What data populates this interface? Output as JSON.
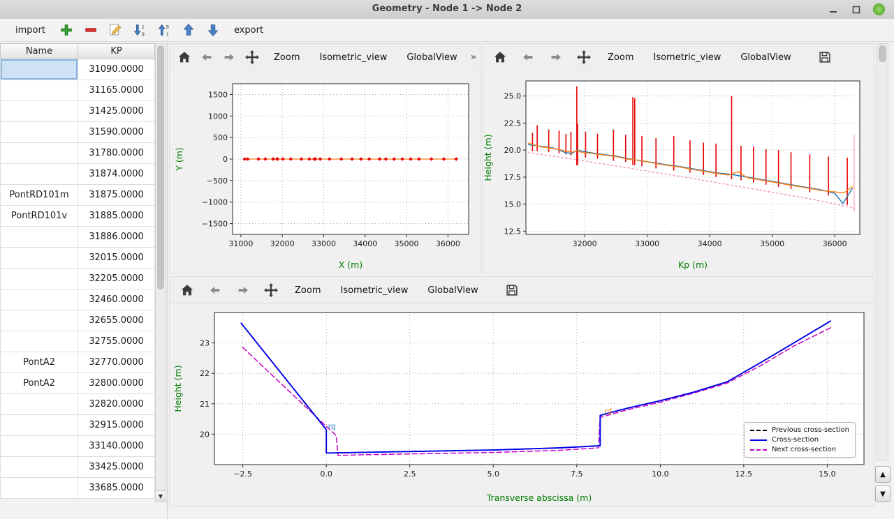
{
  "window": {
    "title": "Geometry - Node 1 -> Node 2"
  },
  "main_toolbar": {
    "import_label": "import",
    "export_label": "export",
    "icons": [
      "add-icon",
      "remove-icon",
      "edit-icon",
      "sort-descending-icon",
      "sort-ascending-icon",
      "move-up-icon",
      "move-down-icon"
    ]
  },
  "table": {
    "columns": [
      "Name",
      "KP"
    ],
    "selected": {
      "row": 0,
      "col": 0
    },
    "rows": [
      [
        "",
        "31090.0000"
      ],
      [
        "",
        "31165.0000"
      ],
      [
        "",
        "31425.0000"
      ],
      [
        "",
        "31590.0000"
      ],
      [
        "",
        "31780.0000"
      ],
      [
        "",
        "31874.0000"
      ],
      [
        "PontRD101m",
        "31875.0000"
      ],
      [
        "PontRD101v",
        "31885.0000"
      ],
      [
        "",
        "31886.0000"
      ],
      [
        "",
        "32015.0000"
      ],
      [
        "",
        "32205.0000"
      ],
      [
        "",
        "32460.0000"
      ],
      [
        "",
        "32655.0000"
      ],
      [
        "",
        "32755.0000"
      ],
      [
        "PontA2",
        "32770.0000"
      ],
      [
        "PontA2",
        "32800.0000"
      ],
      [
        "",
        "32820.0000"
      ],
      [
        "",
        "32915.0000"
      ],
      [
        "",
        "33140.0000"
      ],
      [
        "",
        "33425.0000"
      ],
      [
        "",
        "33685.0000"
      ]
    ]
  },
  "plot_toolbars": {
    "zoom": "Zoom",
    "isometric": "Isometric_view",
    "globalview": "GlobalView",
    "overflow": "»",
    "icons": [
      "home-icon",
      "back-icon",
      "forward-icon",
      "pan-icon",
      "save-icon"
    ]
  },
  "colors": {
    "axis_label_green": "#007c00",
    "spike_red": "#e60000",
    "line_blue": "#1f77b4",
    "line_orange": "#ff7f0e",
    "line_pink": "#f2a0b5",
    "cross_blue": "#0000e6",
    "cross_magenta": "#c400c4"
  },
  "chart_data": [
    {
      "id": "plan-view",
      "type": "line",
      "xlabel": "X (m)",
      "ylabel": "Y (m)",
      "xlim": [
        30800,
        36500
      ],
      "ylim": [
        -1750,
        1750
      ],
      "xticks": [
        31000,
        32000,
        33000,
        34000,
        35000,
        36000
      ],
      "xtick_labels": [
        "31000",
        "32000",
        "33000",
        "34000",
        "35000",
        "36000"
      ],
      "yticks": [
        -1500,
        -1000,
        -500,
        0,
        500,
        1000,
        1500
      ],
      "ytick_labels": [
        "−1500",
        "−1000",
        "−500",
        "0",
        "500",
        "1000",
        "1500"
      ],
      "grid": true,
      "series": [
        {
          "name": "river-axis",
          "color": "#ff7f0e",
          "width": 1.3,
          "markers": true,
          "marker_color": "#e60000",
          "x": [
            31090,
            31165,
            31425,
            31590,
            31780,
            31874,
            31885,
            32015,
            32205,
            32460,
            32655,
            32770,
            32800,
            32915,
            33140,
            33425,
            33685,
            33900,
            34100,
            34350,
            34500,
            34700,
            34900,
            35100,
            35300,
            35600,
            35900,
            36200
          ],
          "y": [
            0,
            0,
            0,
            0,
            0,
            0,
            0,
            0,
            0,
            0,
            0,
            0,
            0,
            0,
            0,
            0,
            0,
            0,
            0,
            0,
            0,
            0,
            0,
            0,
            0,
            0,
            0,
            0
          ]
        }
      ]
    },
    {
      "id": "long-profile",
      "type": "line",
      "xlabel": "Kp (m)",
      "ylabel": "Height (m)",
      "xlim": [
        31060,
        36400
      ],
      "ylim": [
        12.2,
        26.4
      ],
      "xticks": [
        32000,
        33000,
        34000,
        35000,
        36000
      ],
      "xtick_labels": [
        "32000",
        "33000",
        "34000",
        "35000",
        "36000"
      ],
      "yticks": [
        12.5,
        15.0,
        17.5,
        20.0,
        22.5,
        25.0
      ],
      "ytick_labels": [
        "12.5",
        "15.0",
        "17.5",
        "20.0",
        "22.5",
        "25.0"
      ],
      "grid": true,
      "spikes": {
        "color": "#e60000",
        "points": [
          [
            31165,
            19.9,
            21.6
          ],
          [
            31240,
            19.9,
            22.3
          ],
          [
            31425,
            19.8,
            21.9
          ],
          [
            31590,
            19.7,
            21.8
          ],
          [
            31700,
            19.6,
            21.5
          ],
          [
            31780,
            19.5,
            21.7
          ],
          [
            31874,
            18.6,
            25.9
          ],
          [
            31886,
            18.6,
            22.4
          ],
          [
            32015,
            19.3,
            21.7
          ],
          [
            32205,
            19.2,
            21.5
          ],
          [
            32460,
            19.0,
            21.9
          ],
          [
            32655,
            18.9,
            21.4
          ],
          [
            32770,
            18.6,
            24.9
          ],
          [
            32800,
            18.6,
            24.8
          ],
          [
            32915,
            18.5,
            21.3
          ],
          [
            33140,
            18.3,
            21.1
          ],
          [
            33425,
            18.1,
            21.3
          ],
          [
            33685,
            17.9,
            20.9
          ],
          [
            33900,
            17.7,
            20.7
          ],
          [
            34100,
            17.5,
            20.6
          ],
          [
            34350,
            17.3,
            25.0
          ],
          [
            34500,
            17.2,
            20.4
          ],
          [
            34700,
            17.0,
            20.3
          ],
          [
            34900,
            16.8,
            20.1
          ],
          [
            35100,
            16.6,
            20.0
          ],
          [
            35300,
            16.4,
            19.8
          ],
          [
            35600,
            16.1,
            19.6
          ],
          [
            35900,
            15.8,
            19.4
          ],
          [
            36200,
            14.9,
            19.3
          ]
        ]
      },
      "vlines": [
        {
          "x": 36310,
          "y0": 14.3,
          "y1": 21.4,
          "color": "#ffb3c6"
        }
      ],
      "series": [
        {
          "name": "bottom-pink-dotted",
          "color": "#f2a0b5",
          "width": 1.6,
          "dash": "2,4",
          "x": [
            31100,
            31600,
            32100,
            32600,
            33100,
            33600,
            34100,
            34600,
            35100,
            35600,
            36100,
            36320
          ],
          "y": [
            19.75,
            19.35,
            18.9,
            18.45,
            17.95,
            17.5,
            17.0,
            16.5,
            16.0,
            15.5,
            14.9,
            14.6
          ]
        },
        {
          "name": "left-bank-blue",
          "color": "#1f77b4",
          "width": 1.4,
          "x": [
            31100,
            31300,
            31500,
            31700,
            31800,
            31874,
            31950,
            32100,
            32300,
            32500,
            32700,
            32900,
            33100,
            33300,
            33500,
            33700,
            33900,
            34100,
            34350,
            34600,
            34900,
            35200,
            35500,
            35800,
            36000,
            36130,
            36280
          ],
          "y": [
            20.5,
            20.35,
            20.2,
            19.75,
            19.7,
            20.0,
            19.9,
            19.75,
            19.6,
            19.45,
            19.2,
            19.0,
            18.85,
            18.65,
            18.5,
            18.3,
            18.1,
            17.9,
            17.75,
            17.5,
            17.2,
            16.9,
            16.6,
            16.3,
            16.0,
            15.05,
            16.45
          ]
        },
        {
          "name": "right-bank-orange",
          "color": "#ff7f0e",
          "width": 1.4,
          "x": [
            31100,
            31300,
            31500,
            31700,
            31800,
            31880,
            31950,
            32100,
            32300,
            32500,
            32700,
            32900,
            33100,
            33300,
            33500,
            33700,
            33900,
            34100,
            34300,
            34450,
            34600,
            34900,
            35200,
            35500,
            35800,
            36050,
            36150,
            36280
          ],
          "y": [
            20.65,
            20.3,
            20.15,
            19.9,
            19.8,
            19.95,
            19.8,
            19.7,
            19.55,
            19.4,
            19.15,
            19.05,
            18.8,
            18.6,
            18.45,
            18.25,
            18.05,
            17.85,
            17.7,
            18.0,
            17.45,
            17.15,
            16.85,
            16.55,
            16.25,
            16.1,
            16.05,
            16.6
          ]
        }
      ]
    },
    {
      "id": "cross-section",
      "type": "line",
      "xlabel": "Transverse abscissa (m)",
      "ylabel": "Height (m)",
      "xlim": [
        -3.35,
        16.1
      ],
      "ylim": [
        19.0,
        24.0
      ],
      "xticks": [
        -2.5,
        0.0,
        2.5,
        5.0,
        7.5,
        10.0,
        12.5,
        15.0
      ],
      "xtick_labels": [
        "−2.5",
        "0.0",
        "2.5",
        "5.0",
        "7.5",
        "10.0",
        "12.5",
        "15.0"
      ],
      "yticks": [
        20,
        21,
        22,
        23
      ],
      "ytick_labels": [
        "20",
        "21",
        "22",
        "23"
      ],
      "grid": true,
      "series": [
        {
          "name": "Previous cross-section",
          "color": "#000000",
          "width": 1.5,
          "dash": "7,4",
          "x": [
            -2.55,
            0.0,
            0.0,
            1.0,
            3.0,
            5.0,
            7.0,
            8.2,
            8.2,
            9.0,
            10.0,
            11.0,
            12.0,
            13.0,
            14.0,
            15.1
          ],
          "y": [
            23.65,
            20.15,
            19.38,
            19.4,
            19.44,
            19.48,
            19.55,
            19.62,
            20.62,
            20.85,
            21.1,
            21.38,
            21.72,
            22.35,
            23.0,
            23.72
          ]
        },
        {
          "name": "Next cross-section",
          "color": "#c400c4",
          "width": 1.5,
          "dash": "7,4",
          "x": [
            -2.5,
            0.3,
            0.35,
            1.0,
            3.0,
            5.0,
            7.0,
            8.15,
            8.2,
            9.0,
            10.0,
            11.0,
            12.0,
            13.0,
            14.0,
            15.1
          ],
          "y": [
            22.85,
            19.95,
            19.3,
            19.32,
            19.36,
            19.4,
            19.47,
            19.55,
            20.55,
            20.8,
            21.05,
            21.35,
            21.68,
            22.25,
            22.9,
            23.5
          ]
        },
        {
          "name": "Cross-section",
          "color": "#0000e6",
          "width": 1.9,
          "x": [
            -2.55,
            0.0,
            0.0,
            1.0,
            3.0,
            5.0,
            7.0,
            8.2,
            8.2,
            9.0,
            10.0,
            11.0,
            12.0,
            13.0,
            14.0,
            15.1
          ],
          "y": [
            23.65,
            20.15,
            19.38,
            19.4,
            19.44,
            19.48,
            19.55,
            19.62,
            20.62,
            20.85,
            21.1,
            21.38,
            21.72,
            22.35,
            23.0,
            23.72
          ]
        }
      ],
      "annotations": [
        {
          "text": "rg",
          "x": 0.05,
          "y": 20.18,
          "color": "#2f86c8"
        },
        {
          "text": "rd",
          "x": 8.32,
          "y": 20.68,
          "color": "#e8821e"
        }
      ],
      "legend": [
        {
          "label": "Previous cross-section",
          "color": "#000000",
          "dash": true
        },
        {
          "label": "Cross-section",
          "color": "#0000e6",
          "dash": false
        },
        {
          "label": "Next cross-section",
          "color": "#c400c4",
          "dash": true
        }
      ],
      "legend_loc": "lower right"
    }
  ]
}
